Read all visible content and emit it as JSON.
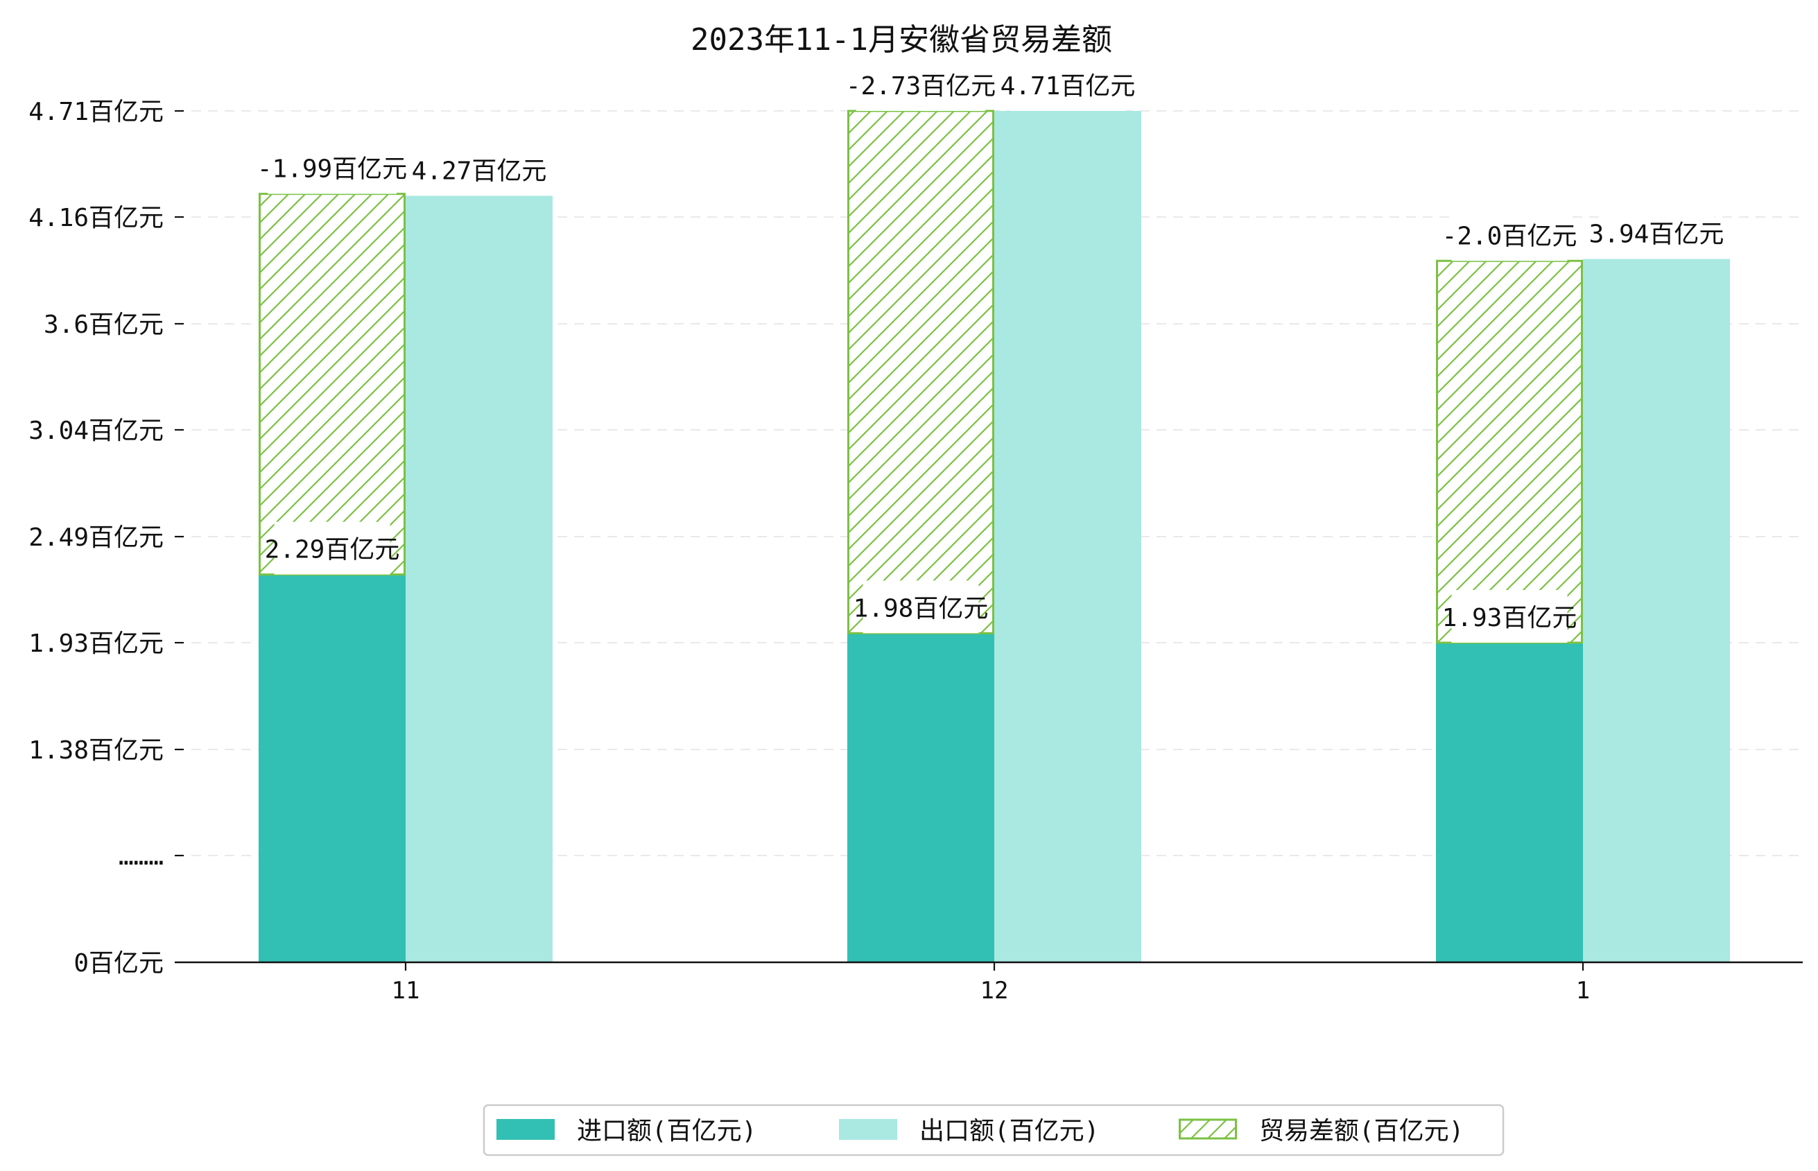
{
  "chart_data": {
    "type": "bar",
    "title": "2023年11-1月安徽省贸易差额",
    "categories": [
      "11",
      "12",
      "1"
    ],
    "y_tick_labels": [
      "0百亿元",
      "………",
      "1.38百亿元",
      "1.93百亿元",
      "2.49百亿元",
      "3.04百亿元",
      "3.6百亿元",
      "4.16百亿元",
      "4.71百亿元"
    ],
    "grid": "horizontal dashed",
    "legend_placement": "bottom-center",
    "series": [
      {
        "name": "进口额(百亿元)",
        "values": [
          2.29,
          1.98,
          1.93
        ],
        "labels": [
          "2.29百亿元",
          "1.98百亿元",
          "1.93百亿元"
        ],
        "color": "#31c0b3"
      },
      {
        "name": "出口额(百亿元)",
        "values": [
          4.27,
          4.71,
          3.94
        ],
        "labels": [
          "4.27百亿元",
          "4.71百亿元",
          "3.94百亿元"
        ],
        "color": "#aae8e2"
      },
      {
        "name": "贸易差额(百亿元)",
        "values": [
          -1.99,
          -2.73,
          -2.0
        ],
        "labels": [
          "-1.99百亿元",
          "-2.73百亿元",
          "-2.0百亿元"
        ],
        "color": "#7ac143",
        "pattern": "hatch"
      }
    ]
  }
}
